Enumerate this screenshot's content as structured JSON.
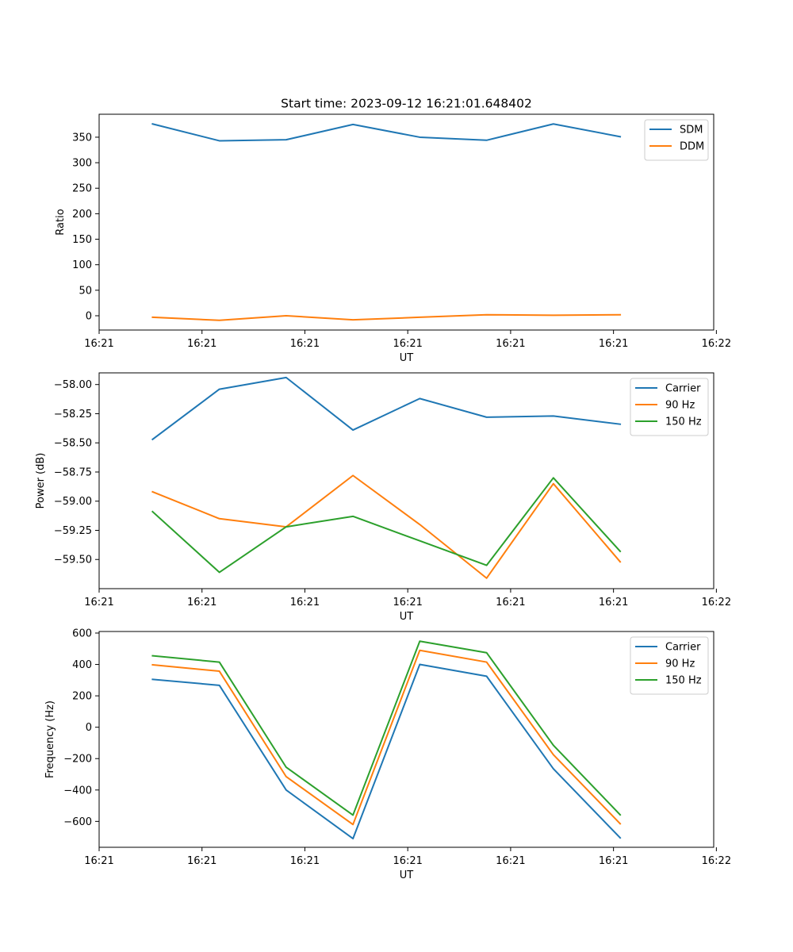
{
  "figure_title": "Start time: 2023-09-12 16:21:01.648402",
  "chart_data": [
    {
      "type": "line",
      "title": "Start time: 2023-09-12 16:21:01.648402",
      "xlabel": "UT",
      "ylabel": "Ratio",
      "x": [
        1,
        2,
        3,
        4,
        5,
        6,
        7,
        8
      ],
      "xlim": [
        0.2,
        9.4
      ],
      "xticks": [
        0.2,
        1.74,
        3.28,
        4.82,
        6.36,
        7.9,
        9.44
      ],
      "xtick_labels": [
        "16:21",
        "16:21",
        "16:21",
        "16:21",
        "16:21",
        "16:21",
        "16:22"
      ],
      "ylim": [
        -28,
        395
      ],
      "yticks": [
        0,
        50,
        100,
        150,
        200,
        250,
        300,
        350
      ],
      "ytick_labels": [
        "0",
        "50",
        "100",
        "150",
        "200",
        "250",
        "300",
        "350"
      ],
      "legend_position": "top-right",
      "series": [
        {
          "name": "SDM",
          "color": "#1f77b4",
          "values": [
            376,
            343,
            345,
            375,
            350,
            344,
            376,
            351
          ]
        },
        {
          "name": "DDM",
          "color": "#ff7f0e",
          "values": [
            -3,
            -9,
            0,
            -8,
            -3,
            2,
            1,
            2
          ]
        }
      ]
    },
    {
      "type": "line",
      "title": "",
      "xlabel": "UT",
      "ylabel": "Power (dB)",
      "x": [
        1,
        2,
        3,
        4,
        5,
        6,
        7,
        8
      ],
      "xlim": [
        0.2,
        9.4
      ],
      "xticks": [
        0.2,
        1.74,
        3.28,
        4.82,
        6.36,
        7.9,
        9.44
      ],
      "xtick_labels": [
        "16:21",
        "16:21",
        "16:21",
        "16:21",
        "16:21",
        "16:21",
        "16:22"
      ],
      "ylim": [
        -59.75,
        -57.9
      ],
      "yticks": [
        -59.5,
        -59.25,
        -59.0,
        -58.75,
        -58.5,
        -58.25,
        -58.0
      ],
      "ytick_labels": [
        "−59.50",
        "−59.25",
        "−59.00",
        "−58.75",
        "−58.50",
        "−58.25",
        "−58.00"
      ],
      "legend_position": "top-right",
      "series": [
        {
          "name": "Carrier",
          "color": "#1f77b4",
          "values": [
            -58.47,
            -58.04,
            -57.94,
            -58.39,
            -58.12,
            -58.28,
            -58.27,
            -58.34
          ]
        },
        {
          "name": "90 Hz",
          "color": "#ff7f0e",
          "values": [
            -58.92,
            -59.15,
            -59.22,
            -58.78,
            -59.2,
            -59.66,
            -58.85,
            -59.52
          ]
        },
        {
          "name": "150 Hz",
          "color": "#2ca02c",
          "values": [
            -59.09,
            -59.61,
            -59.22,
            -59.13,
            -59.34,
            -59.55,
            -58.8,
            -59.43
          ]
        }
      ]
    },
    {
      "type": "line",
      "title": "",
      "xlabel": "UT",
      "ylabel": "Frequency (Hz)",
      "x": [
        1,
        2,
        3,
        4,
        5,
        6,
        7,
        8
      ],
      "xlim": [
        0.2,
        9.4
      ],
      "xticks": [
        0.2,
        1.74,
        3.28,
        4.82,
        6.36,
        7.9,
        9.44
      ],
      "xtick_labels": [
        "16:21",
        "16:21",
        "16:21",
        "16:21",
        "16:21",
        "16:21",
        "16:22"
      ],
      "ylim": [
        -765,
        610
      ],
      "yticks": [
        -600,
        -400,
        -200,
        0,
        200,
        400,
        600
      ],
      "ytick_labels": [
        "−600",
        "−400",
        "−200",
        "0",
        "200",
        "400",
        "600"
      ],
      "legend_position": "top-right",
      "series": [
        {
          "name": "Carrier",
          "color": "#1f77b4",
          "values": [
            305,
            267,
            -400,
            -710,
            400,
            325,
            -265,
            -705
          ]
        },
        {
          "name": "90 Hz",
          "color": "#ff7f0e",
          "values": [
            398,
            357,
            -315,
            -620,
            490,
            415,
            -175,
            -615
          ]
        },
        {
          "name": "150 Hz",
          "color": "#2ca02c",
          "values": [
            455,
            415,
            -255,
            -560,
            548,
            475,
            -115,
            -558
          ]
        }
      ]
    }
  ]
}
